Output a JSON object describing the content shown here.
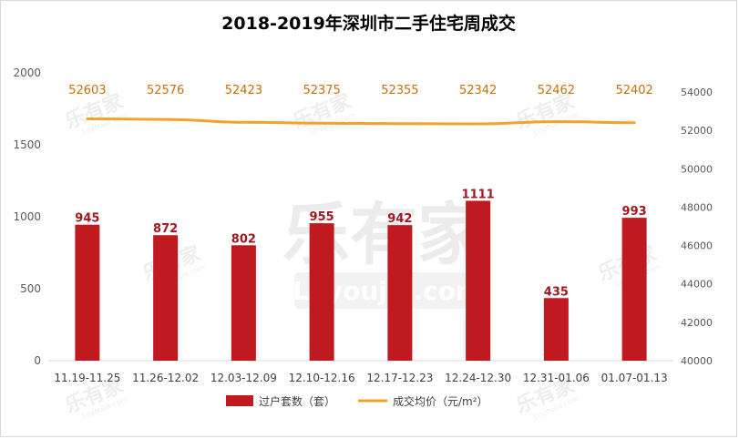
{
  "title": "2018-2019年深圳市二手住宅周成交",
  "watermark": {
    "brand": "乐有家",
    "site": "Leyoujia.com"
  },
  "legend": {
    "bar_label": "过户套数（套）",
    "line_label": "成交均价（元/m²）"
  },
  "colors": {
    "bar": "#c0191f",
    "line": "#f5a12e",
    "bar_label": "#a01822",
    "line_label": "#c8700a",
    "axis_text": "#595959",
    "gridline": "#e6e6e6"
  },
  "chart_data": {
    "type": "bar",
    "categories": [
      "11.19-11.25",
      "11.26-12.02",
      "12.03-12.09",
      "12.10-12.16",
      "12.17-12.23",
      "12.24-12.30",
      "12.31-01.06",
      "01.07-01.13"
    ],
    "series": [
      {
        "name": "过户套数（套）",
        "type": "bar",
        "axis": "left",
        "values": [
          945,
          872,
          802,
          955,
          942,
          1111,
          435,
          993
        ]
      },
      {
        "name": "成交均价（元/m²）",
        "type": "line",
        "axis": "right",
        "values": [
          52603,
          52576,
          52423,
          52375,
          52355,
          52342,
          52462,
          52402
        ]
      }
    ],
    "left_axis": {
      "ylim": [
        0,
        2000
      ],
      "ticks": [
        0,
        500,
        1000,
        1500,
        2000
      ]
    },
    "right_axis": {
      "ylim": [
        40000,
        55000
      ],
      "ticks": [
        40000,
        42000,
        44000,
        46000,
        48000,
        50000,
        52000,
        54000
      ]
    },
    "grid": false,
    "legend_position": "bottom"
  }
}
